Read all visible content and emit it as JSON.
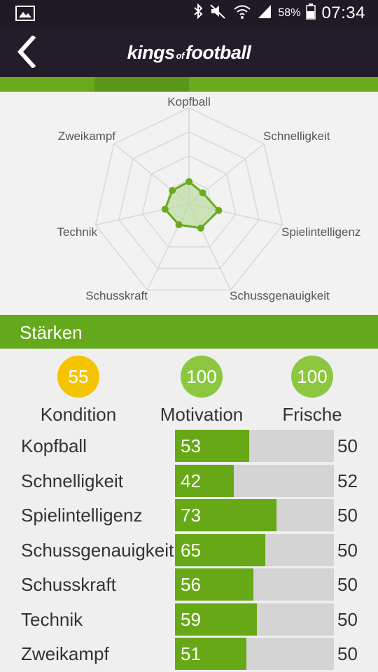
{
  "status_bar": {
    "battery": "58%",
    "time": "07:34",
    "icons": [
      "gallery-icon",
      "bluetooth-icon",
      "mute-icon",
      "wifi-icon",
      "signal-icon",
      "battery-icon"
    ]
  },
  "app_bar": {
    "logo_part1": "kings",
    "logo_part2": "of",
    "logo_part3": "football",
    "back_icon": "chevron-left-icon"
  },
  "radar": {
    "axes": [
      {
        "label": "Kopfball",
        "value": 53
      },
      {
        "label": "Schnelligkeit",
        "value": 42
      },
      {
        "label": "Spielintelligenz",
        "value": 73
      },
      {
        "label": "Schussgenauigkeit",
        "value": 65
      },
      {
        "label": "Schusskraft",
        "value": 56
      },
      {
        "label": "Technik",
        "value": 59
      },
      {
        "label": "Zweikampf",
        "value": 51
      }
    ],
    "max": 230,
    "levels": 4,
    "colors": {
      "grid": "#d8d8d8",
      "line": "#6aab1e",
      "fill": "#bcdca0"
    }
  },
  "section": {
    "title": "Stärken"
  },
  "stats": [
    {
      "value": "55",
      "label": "Kondition",
      "color": "#f5c400"
    },
    {
      "value": "100",
      "label": "Motivation",
      "color": "#8dc73f"
    },
    {
      "value": "100",
      "label": "Frische",
      "color": "#8dc73f"
    }
  ],
  "attributes": [
    {
      "name": "Kopfball",
      "value": 53,
      "compare": "50"
    },
    {
      "name": "Schnelligkeit",
      "value": 42,
      "compare": "52"
    },
    {
      "name": "Spielintelligenz",
      "value": 73,
      "compare": "50"
    },
    {
      "name": "Schussgenauigkeit",
      "value": 65,
      "compare": "50"
    },
    {
      "name": "Schusskraft",
      "value": 56,
      "compare": "50"
    },
    {
      "name": "Technik",
      "value": 59,
      "compare": "50"
    },
    {
      "name": "Zweikampf",
      "value": 51,
      "compare": "50"
    }
  ],
  "bar_max": 114
}
